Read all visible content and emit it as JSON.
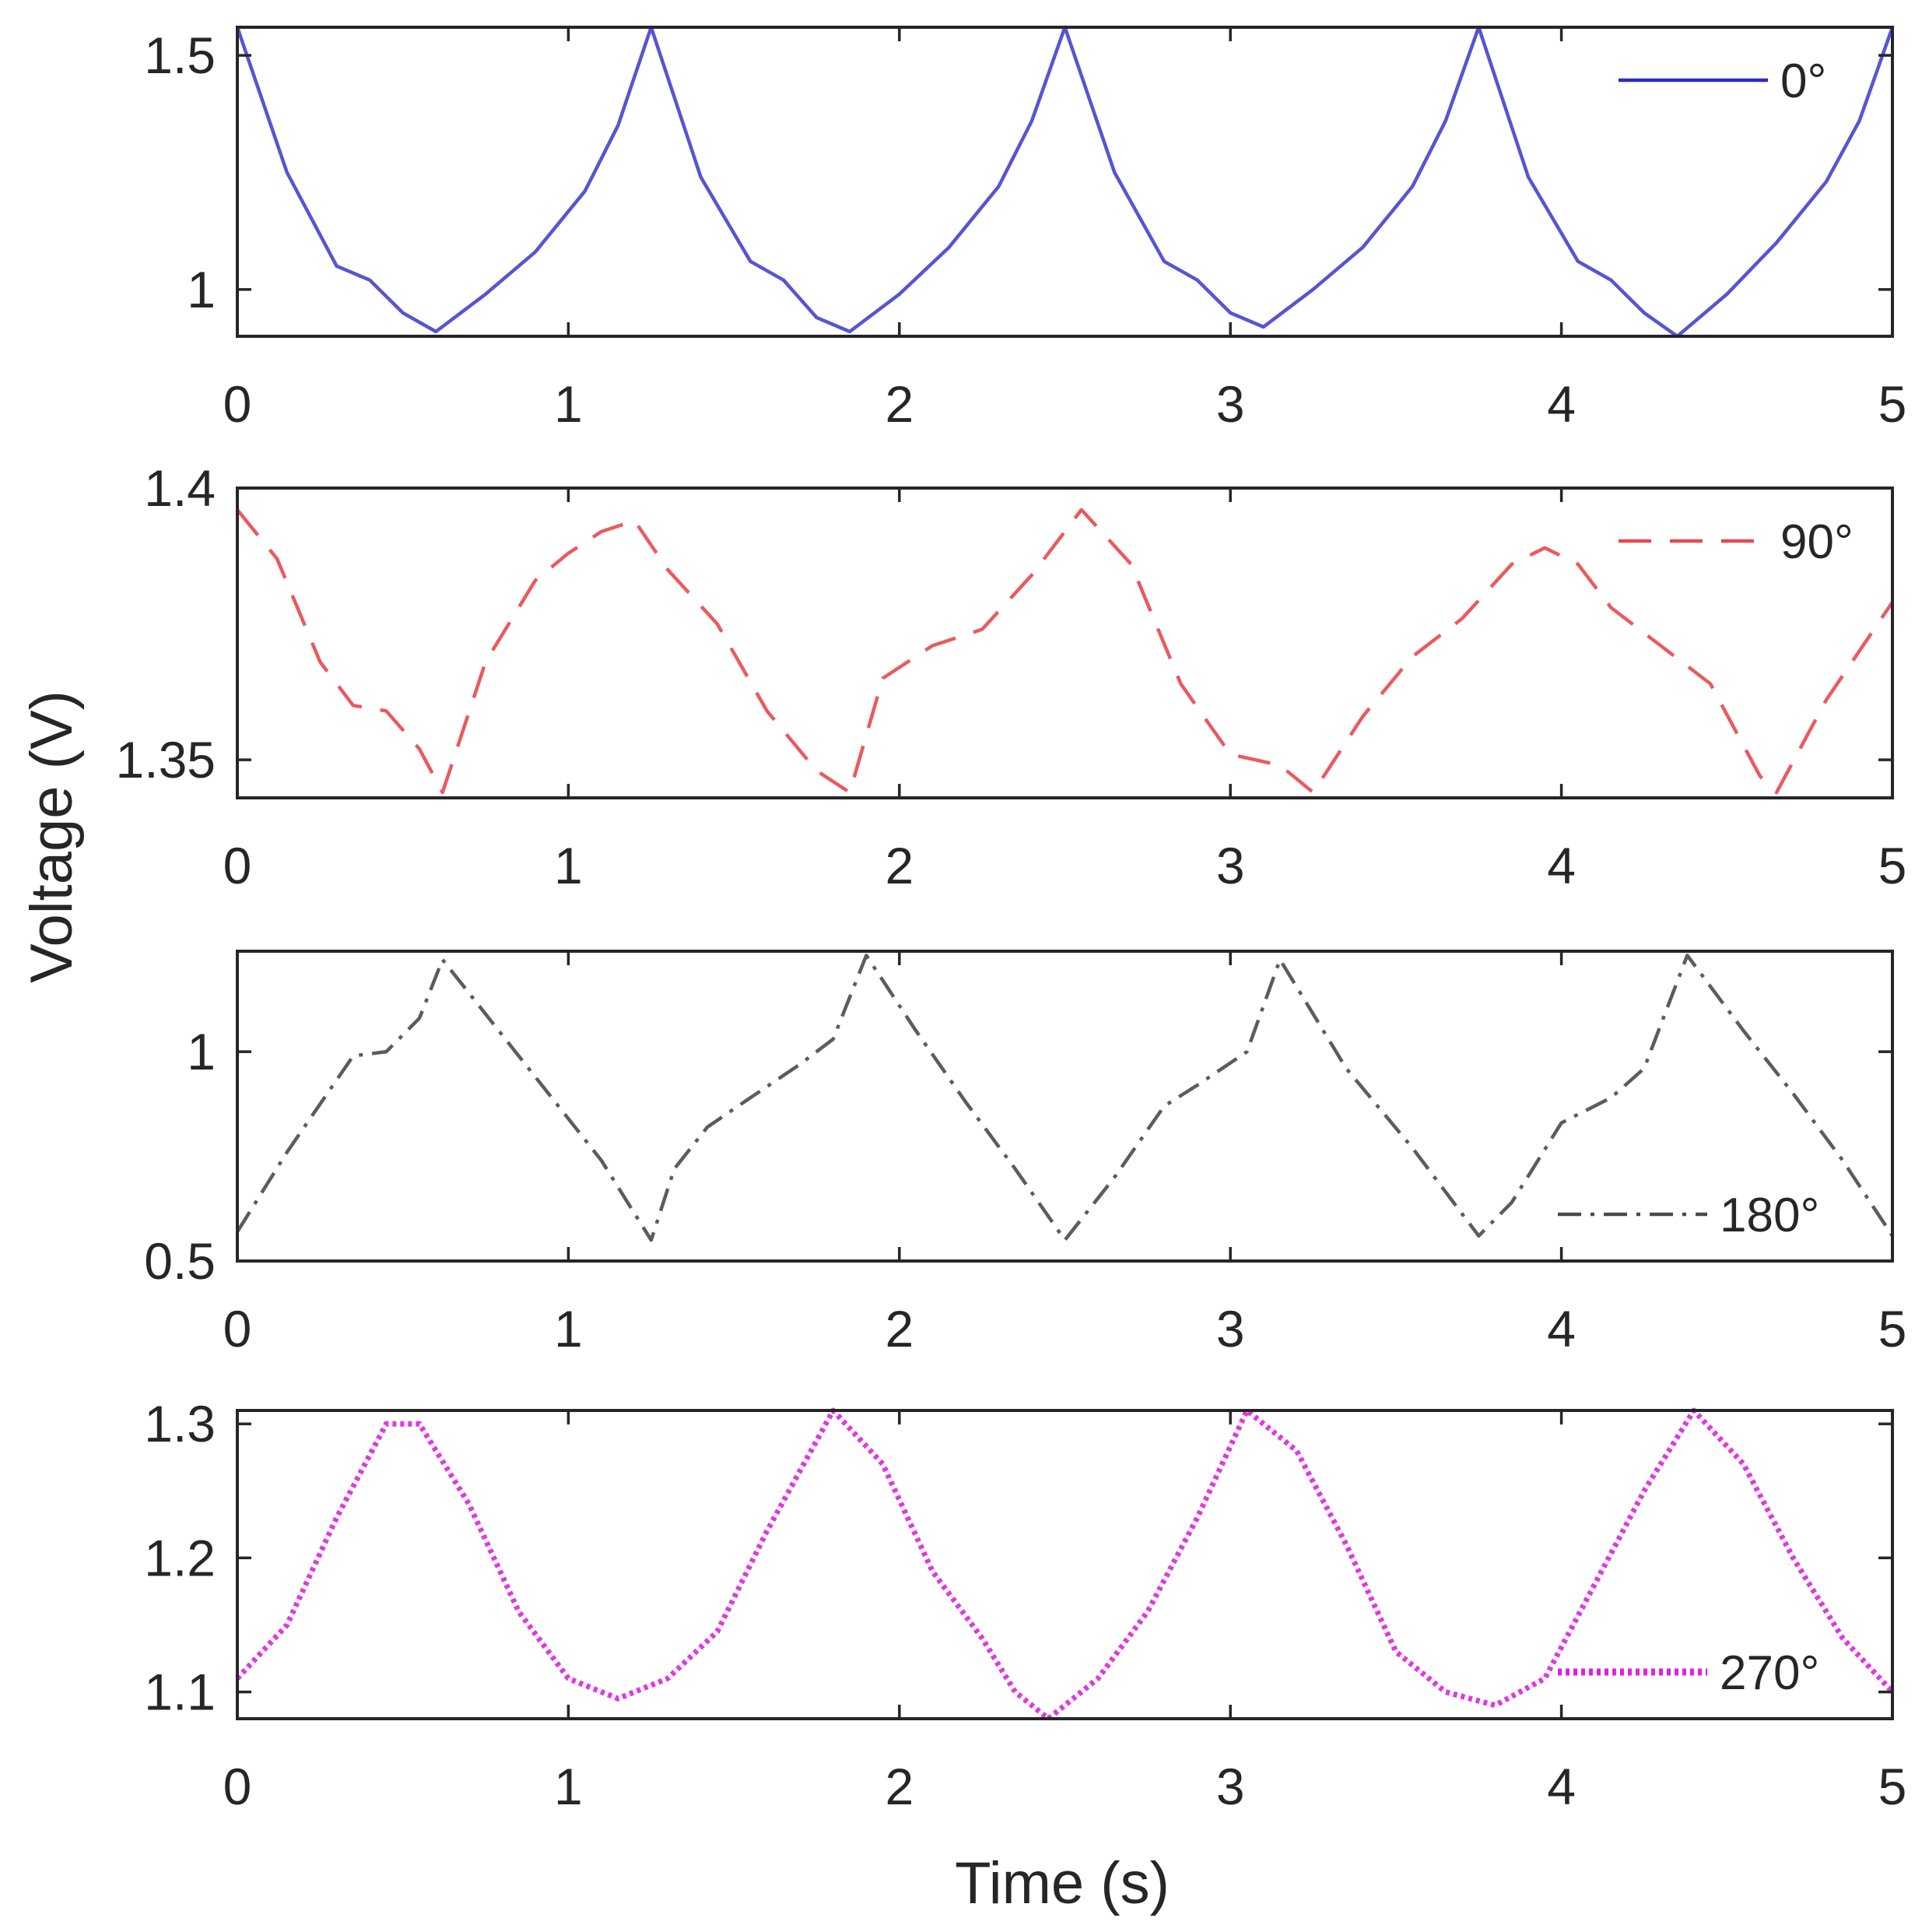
{
  "figure": {
    "ylabel": "Voltage (V)",
    "xlabel": "Time (s)"
  },
  "chart_data": [
    {
      "type": "line",
      "legend": "0°",
      "legend_position": "top-right",
      "color": "#2b2bc8",
      "style": "solid",
      "xlim": [
        0,
        5
      ],
      "ylim": [
        0.9,
        1.56
      ],
      "xticks": [
        "0",
        "1",
        "2",
        "3",
        "4",
        "5"
      ],
      "yticks": [
        {
          "v": 1,
          "label": "1"
        },
        {
          "v": 1.5,
          "label": "1.5"
        }
      ],
      "x": [
        0,
        0.15,
        0.3,
        0.4,
        0.5,
        0.6,
        0.75,
        0.9,
        1.05,
        1.15,
        1.25,
        1.4,
        1.55,
        1.65,
        1.75,
        1.85,
        2.0,
        2.15,
        2.3,
        2.4,
        2.5,
        2.65,
        2.8,
        2.9,
        3.0,
        3.1,
        3.25,
        3.4,
        3.55,
        3.65,
        3.75,
        3.9,
        4.05,
        4.15,
        4.25,
        4.35,
        4.5,
        4.65,
        4.8,
        4.9,
        5.0
      ],
      "y": [
        1.56,
        1.25,
        1.05,
        1.02,
        0.95,
        0.91,
        0.99,
        1.08,
        1.21,
        1.35,
        1.56,
        1.24,
        1.06,
        1.02,
        0.94,
        0.91,
        0.99,
        1.09,
        1.22,
        1.36,
        1.56,
        1.25,
        1.06,
        1.02,
        0.95,
        0.92,
        1.0,
        1.09,
        1.22,
        1.36,
        1.56,
        1.24,
        1.06,
        1.02,
        0.95,
        0.9,
        0.99,
        1.1,
        1.23,
        1.36,
        1.56
      ]
    },
    {
      "type": "line",
      "legend": "90°",
      "legend_position": "top-right",
      "color": "#e8484c",
      "style": "dashed",
      "xlim": [
        0,
        5
      ],
      "ylim": [
        1.343,
        1.4
      ],
      "xticks": [
        "0",
        "1",
        "2",
        "3",
        "4",
        "5"
      ],
      "yticks": [
        {
          "v": 1.35,
          "label": "1.35"
        },
        {
          "v": 1.4,
          "label": "1.4"
        }
      ],
      "x": [
        0,
        0.12,
        0.25,
        0.35,
        0.45,
        0.55,
        0.62,
        0.75,
        0.9,
        1.0,
        1.1,
        1.2,
        1.3,
        1.45,
        1.6,
        1.75,
        1.85,
        1.95,
        2.1,
        2.25,
        2.4,
        2.55,
        2.7,
        2.85,
        3.0,
        3.15,
        3.25,
        3.4,
        3.55,
        3.7,
        3.85,
        3.95,
        4.05,
        4.15,
        4.3,
        4.45,
        4.6,
        4.65,
        4.8,
        5.0
      ],
      "y": [
        1.396,
        1.387,
        1.368,
        1.36,
        1.359,
        1.352,
        1.344,
        1.368,
        1.383,
        1.388,
        1.392,
        1.394,
        1.385,
        1.375,
        1.359,
        1.348,
        1.344,
        1.365,
        1.371,
        1.374,
        1.384,
        1.396,
        1.386,
        1.364,
        1.351,
        1.349,
        1.344,
        1.358,
        1.369,
        1.376,
        1.386,
        1.389,
        1.386,
        1.378,
        1.371,
        1.364,
        1.347,
        1.344,
        1.361,
        1.379
      ]
    },
    {
      "type": "line",
      "legend": "180°",
      "legend_position": "bottom-right",
      "color": "#4a4a4a",
      "style": "dash-dot",
      "xlim": [
        0,
        5
      ],
      "ylim": [
        0.5,
        1.24
      ],
      "xticks": [
        "0",
        "1",
        "2",
        "3",
        "4",
        "5"
      ],
      "yticks": [
        {
          "v": 0.5,
          "label": "0.5"
        },
        {
          "v": 1,
          "label": "1"
        }
      ],
      "x": [
        0,
        0.15,
        0.35,
        0.45,
        0.55,
        0.62,
        0.8,
        0.95,
        1.1,
        1.25,
        1.32,
        1.42,
        1.55,
        1.7,
        1.8,
        1.9,
        2.05,
        2.2,
        2.35,
        2.5,
        2.65,
        2.8,
        2.9,
        3.05,
        3.15,
        3.35,
        3.55,
        3.75,
        3.85,
        4.0,
        4.15,
        4.25,
        4.38,
        4.55,
        4.7,
        4.85,
        5.0
      ],
      "y": [
        0.57,
        0.76,
        0.99,
        1.0,
        1.08,
        1.22,
        1.04,
        0.89,
        0.74,
        0.55,
        0.72,
        0.82,
        0.89,
        0.97,
        1.03,
        1.23,
        1.05,
        0.88,
        0.72,
        0.55,
        0.7,
        0.87,
        0.92,
        1.0,
        1.22,
        0.96,
        0.77,
        0.56,
        0.64,
        0.83,
        0.89,
        0.96,
        1.23,
        1.05,
        0.9,
        0.74,
        0.56
      ]
    },
    {
      "type": "line",
      "legend": "270°",
      "legend_position": "bottom-right",
      "color": "#e020e0",
      "style": "dotted",
      "xlim": [
        0,
        5
      ],
      "ylim": [
        1.08,
        1.31
      ],
      "xticks": [
        "0",
        "1",
        "2",
        "3",
        "4",
        "5"
      ],
      "yticks": [
        {
          "v": 1.1,
          "label": "1.1"
        },
        {
          "v": 1.2,
          "label": "1.2"
        },
        {
          "v": 1.3,
          "label": "1.3"
        }
      ],
      "x": [
        0,
        0.15,
        0.3,
        0.45,
        0.55,
        0.7,
        0.85,
        1.0,
        1.15,
        1.3,
        1.45,
        1.6,
        1.8,
        1.95,
        2.1,
        2.25,
        2.35,
        2.45,
        2.6,
        2.75,
        2.9,
        3.05,
        3.2,
        3.35,
        3.5,
        3.65,
        3.8,
        3.95,
        4.1,
        4.25,
        4.4,
        4.55,
        4.7,
        4.85,
        5.0
      ],
      "y": [
        1.11,
        1.15,
        1.23,
        1.3,
        1.3,
        1.24,
        1.16,
        1.11,
        1.095,
        1.11,
        1.145,
        1.22,
        1.31,
        1.27,
        1.19,
        1.14,
        1.1,
        1.08,
        1.11,
        1.16,
        1.23,
        1.31,
        1.28,
        1.21,
        1.13,
        1.1,
        1.09,
        1.11,
        1.18,
        1.25,
        1.31,
        1.27,
        1.2,
        1.14,
        1.1
      ]
    }
  ]
}
